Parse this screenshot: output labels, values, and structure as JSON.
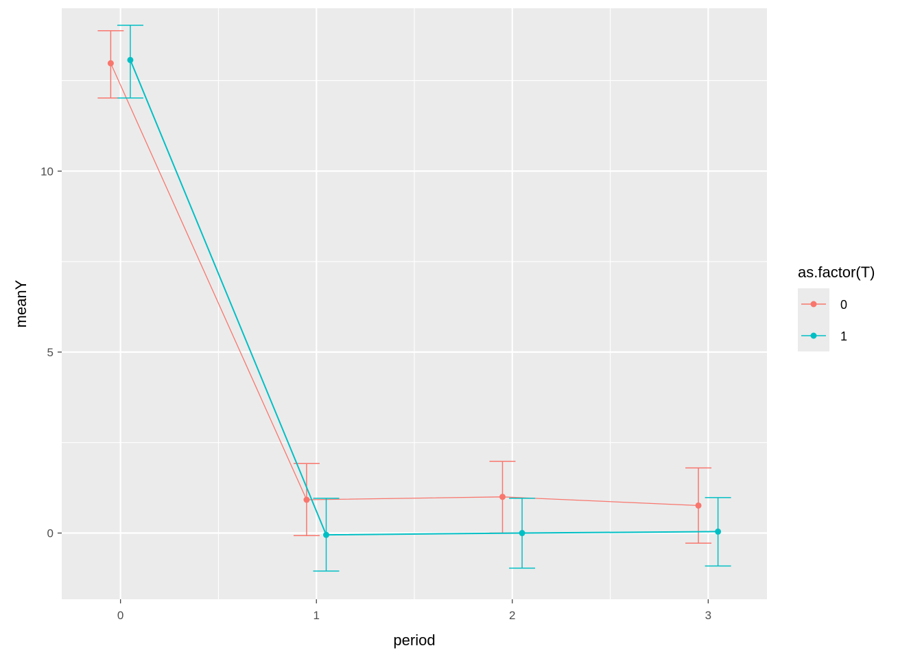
{
  "chart_data": {
    "type": "line",
    "xlabel": "period",
    "ylabel": "meanY",
    "x_ticks": [
      0,
      1,
      2,
      3
    ],
    "x_tick_labels": [
      "0",
      "1",
      "2",
      "3"
    ],
    "y_ticks": [
      0,
      5,
      10
    ],
    "y_tick_labels": [
      "0",
      "5",
      "10"
    ],
    "xlim": [
      -0.3,
      3.3
    ],
    "ylim": [
      -1.83,
      14.5
    ],
    "grid": true,
    "legend": {
      "title": "as.factor(T)",
      "placement": "right",
      "entries": [
        "0",
        "1"
      ]
    },
    "dodge": 0.05,
    "series": [
      {
        "name": "0",
        "color": "#F8766D",
        "x": [
          0,
          1,
          2,
          3
        ],
        "y": [
          12.98,
          0.92,
          1.0,
          0.76
        ],
        "ymin": [
          12.02,
          -0.07,
          0.0,
          -0.28
        ],
        "ymax": [
          13.88,
          1.92,
          1.98,
          1.8
        ]
      },
      {
        "name": "1",
        "color": "#00BFC4",
        "x": [
          0,
          1,
          2,
          3
        ],
        "y": [
          13.07,
          -0.05,
          0.0,
          0.04
        ],
        "ymin": [
          12.02,
          -1.05,
          -0.97,
          -0.91
        ],
        "ymax": [
          14.03,
          0.96,
          0.96,
          0.98
        ]
      }
    ]
  }
}
